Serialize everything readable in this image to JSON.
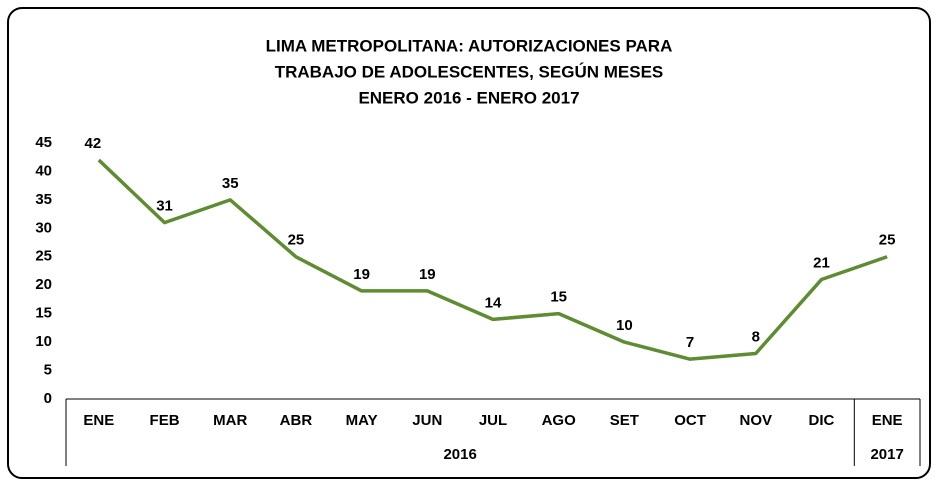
{
  "chart_data": {
    "type": "line",
    "title": [
      "LIMA METROPOLITANA: AUTORIZACIONES PARA",
      "TRABAJO DE  ADOLESCENTES, SEGÚN MESES",
      "ENERO 2016 - ENERO 2017"
    ],
    "groups": [
      {
        "label": "2016",
        "categories": [
          "ENE",
          "FEB",
          "MAR",
          "ABR",
          "MAY",
          "JUN",
          "JUL",
          "AGO",
          "SET",
          "OCT",
          "NOV",
          "DIC"
        ]
      },
      {
        "label": "2017",
        "categories": [
          "ENE"
        ]
      }
    ],
    "values": [
      42,
      31,
      35,
      25,
      19,
      19,
      14,
      15,
      10,
      7,
      8,
      21,
      25
    ],
    "color": "#5e8c31",
    "ylim": [
      0,
      45
    ],
    "yticks": [
      0,
      5,
      10,
      15,
      20,
      25,
      30,
      35,
      40,
      45
    ]
  }
}
